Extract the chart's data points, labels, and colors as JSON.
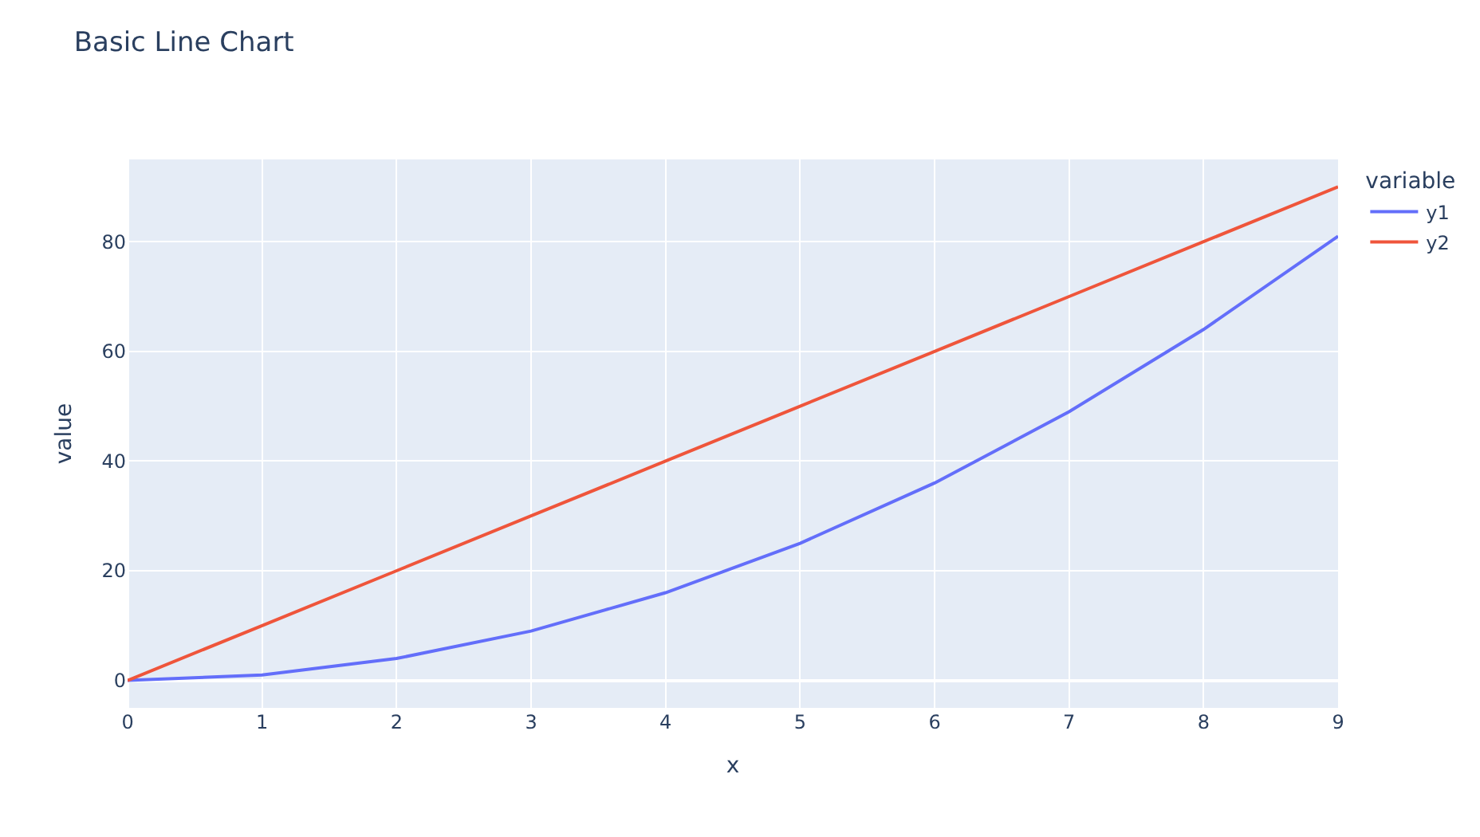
{
  "chart_data": {
    "type": "line",
    "title": "Basic Line Chart",
    "xlabel": "x",
    "ylabel": "value",
    "legend_title": "variable",
    "x": [
      0,
      1,
      2,
      3,
      4,
      5,
      6,
      7,
      8,
      9
    ],
    "series": [
      {
        "name": "y1",
        "color": "#636efa",
        "values": [
          0,
          1,
          4,
          9,
          16,
          25,
          36,
          49,
          64,
          81
        ]
      },
      {
        "name": "y2",
        "color": "#ef553b",
        "values": [
          0,
          10,
          20,
          30,
          40,
          50,
          60,
          70,
          80,
          90
        ]
      }
    ],
    "xlim": [
      0,
      9
    ],
    "xticks": [
      0,
      1,
      2,
      3,
      4,
      5,
      6,
      7,
      8,
      9
    ],
    "ylim": [
      -5,
      95
    ],
    "yticks": [
      0,
      20,
      40,
      60,
      80
    ],
    "grid": true,
    "legend": "top right",
    "line_style": "solid"
  }
}
